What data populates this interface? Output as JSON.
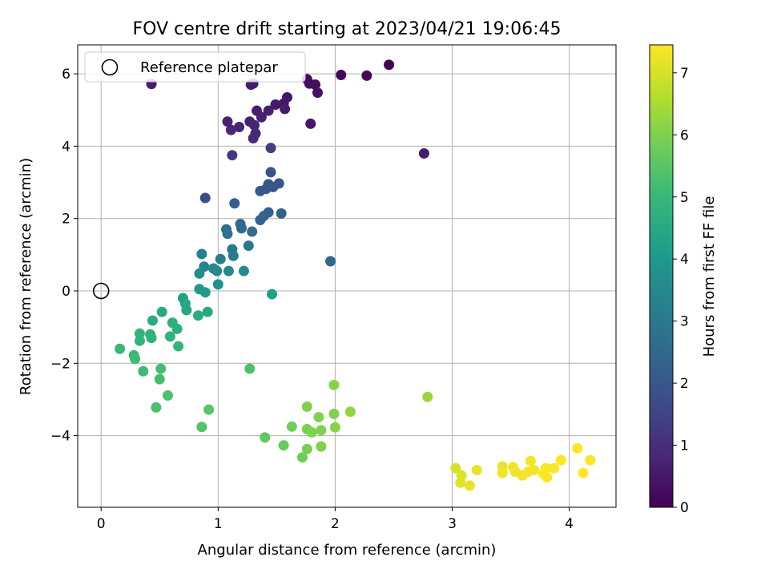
{
  "chart_data": {
    "type": "scatter",
    "title": "FOV centre drift starting at 2023/04/21 19:06:45",
    "xlabel": "Angular distance from reference (arcmin)",
    "ylabel": "Rotation from reference (arcmin)",
    "xlim": [
      -0.2,
      4.4
    ],
    "ylim": [
      -5.98,
      6.8
    ],
    "xticks": [
      0,
      1,
      2,
      3,
      4
    ],
    "yticks": [
      -4,
      -2,
      0,
      2,
      4,
      6
    ],
    "ytick_labels": [
      "−4",
      "−2",
      "0",
      "2",
      "4",
      "6"
    ],
    "grid": true,
    "legend": {
      "placement": "top-left",
      "entries": [
        "Reference platepar"
      ]
    },
    "reference_point": {
      "x": 0,
      "y": 0
    },
    "colorbar": {
      "label": "Hours from first FF file",
      "min": 0,
      "max": 7.45,
      "ticks": [
        0,
        1,
        2,
        3,
        4,
        5,
        6,
        7
      ],
      "colormap": "viridis"
    },
    "colormap_stops": [
      "#440154",
      "#482878",
      "#3e4a89",
      "#31688e",
      "#26828e",
      "#1f9e89",
      "#35b779",
      "#6dcd59",
      "#b4de2c",
      "#fde725"
    ],
    "reference_marker_color": "#000000",
    "grid_color": "#b0b0b0",
    "points": [
      {
        "x": 2.46,
        "y": 6.25,
        "c": 0.05
      },
      {
        "x": 2.05,
        "y": 5.97,
        "c": 0.1
      },
      {
        "x": 2.27,
        "y": 5.95,
        "c": 0.12
      },
      {
        "x": 1.76,
        "y": 5.85,
        "c": 0.2
      },
      {
        "x": 1.78,
        "y": 5.73,
        "c": 0.25
      },
      {
        "x": 1.83,
        "y": 5.7,
        "c": 0.3
      },
      {
        "x": 1.85,
        "y": 5.48,
        "c": 0.35
      },
      {
        "x": 1.59,
        "y": 5.35,
        "c": 0.45
      },
      {
        "x": 1.56,
        "y": 5.18,
        "c": 0.5
      },
      {
        "x": 1.49,
        "y": 5.15,
        "c": 0.5
      },
      {
        "x": 1.57,
        "y": 5.03,
        "c": 0.55
      },
      {
        "x": 1.43,
        "y": 4.98,
        "c": 0.6
      },
      {
        "x": 1.33,
        "y": 4.98,
        "c": 0.6
      },
      {
        "x": 1.37,
        "y": 4.8,
        "c": 0.65
      },
      {
        "x": 1.27,
        "y": 4.68,
        "c": 0.7
      },
      {
        "x": 1.08,
        "y": 4.68,
        "c": 0.7
      },
      {
        "x": 1.31,
        "y": 4.58,
        "c": 0.75
      },
      {
        "x": 1.18,
        "y": 4.53,
        "c": 0.75
      },
      {
        "x": 1.11,
        "y": 4.45,
        "c": 0.8
      },
      {
        "x": 1.32,
        "y": 4.35,
        "c": 0.85
      },
      {
        "x": 1.3,
        "y": 4.22,
        "c": 0.9
      },
      {
        "x": 1.79,
        "y": 4.62,
        "c": 0.45
      },
      {
        "x": 2.76,
        "y": 3.8,
        "c": 0.6
      },
      {
        "x": 0.43,
        "y": 5.72,
        "c": 0.6
      },
      {
        "x": 1.28,
        "y": 5.7,
        "c": 0.6
      },
      {
        "x": 1.3,
        "y": 5.73,
        "c": 0.55
      },
      {
        "x": 1.12,
        "y": 3.75,
        "c": 1.3
      },
      {
        "x": 1.45,
        "y": 3.95,
        "c": 1.4
      },
      {
        "x": 0.89,
        "y": 2.57,
        "c": 1.75
      },
      {
        "x": 1.45,
        "y": 3.28,
        "c": 1.85
      },
      {
        "x": 1.43,
        "y": 2.95,
        "c": 1.95
      },
      {
        "x": 1.52,
        "y": 2.97,
        "c": 2.0
      },
      {
        "x": 1.47,
        "y": 2.87,
        "c": 2.0
      },
      {
        "x": 1.36,
        "y": 2.76,
        "c": 2.1
      },
      {
        "x": 1.41,
        "y": 2.82,
        "c": 2.05
      },
      {
        "x": 1.14,
        "y": 2.42,
        "c": 2.2
      },
      {
        "x": 1.43,
        "y": 2.17,
        "c": 2.3
      },
      {
        "x": 1.54,
        "y": 2.14,
        "c": 2.3
      },
      {
        "x": 1.39,
        "y": 2.07,
        "c": 2.35
      },
      {
        "x": 1.36,
        "y": 1.96,
        "c": 2.4
      },
      {
        "x": 1.19,
        "y": 1.85,
        "c": 2.5
      },
      {
        "x": 1.2,
        "y": 1.73,
        "c": 2.5
      },
      {
        "x": 1.29,
        "y": 1.64,
        "c": 2.6
      },
      {
        "x": 1.07,
        "y": 1.7,
        "c": 2.7
      },
      {
        "x": 1.08,
        "y": 1.58,
        "c": 2.8
      },
      {
        "x": 1.26,
        "y": 1.25,
        "c": 2.9
      },
      {
        "x": 1.96,
        "y": 0.82,
        "c": 2.5
      },
      {
        "x": 1.12,
        "y": 1.15,
        "c": 3.0
      },
      {
        "x": 1.13,
        "y": 0.97,
        "c": 3.1
      },
      {
        "x": 1.02,
        "y": 0.88,
        "c": 3.2
      },
      {
        "x": 0.86,
        "y": 1.02,
        "c": 3.3
      },
      {
        "x": 0.88,
        "y": 0.67,
        "c": 3.4
      },
      {
        "x": 0.96,
        "y": 0.62,
        "c": 3.5
      },
      {
        "x": 0.99,
        "y": 0.55,
        "c": 3.5
      },
      {
        "x": 1.09,
        "y": 0.55,
        "c": 3.5
      },
      {
        "x": 1.22,
        "y": 0.55,
        "c": 3.6
      },
      {
        "x": 0.84,
        "y": 0.48,
        "c": 3.7
      },
      {
        "x": 1.0,
        "y": 0.18,
        "c": 3.8
      },
      {
        "x": 0.84,
        "y": 0.05,
        "c": 3.9
      },
      {
        "x": 1.46,
        "y": -0.09,
        "c": 4.2
      },
      {
        "x": 0.89,
        "y": -0.04,
        "c": 4.0
      },
      {
        "x": 0.7,
        "y": -0.2,
        "c": 4.3
      },
      {
        "x": 0.72,
        "y": -0.35,
        "c": 4.4
      },
      {
        "x": 0.73,
        "y": -0.53,
        "c": 4.4
      },
      {
        "x": 0.52,
        "y": -0.58,
        "c": 4.5
      },
      {
        "x": 0.91,
        "y": -0.58,
        "c": 4.5
      },
      {
        "x": 0.83,
        "y": -0.68,
        "c": 4.6
      },
      {
        "x": 0.44,
        "y": -0.82,
        "c": 4.6
      },
      {
        "x": 0.61,
        "y": -0.88,
        "c": 4.7
      },
      {
        "x": 0.65,
        "y": -1.05,
        "c": 4.7
      },
      {
        "x": 0.33,
        "y": -1.18,
        "c": 4.8
      },
      {
        "x": 0.42,
        "y": -1.2,
        "c": 4.8
      },
      {
        "x": 0.59,
        "y": -1.26,
        "c": 4.8
      },
      {
        "x": 0.43,
        "y": -1.3,
        "c": 4.8
      },
      {
        "x": 0.33,
        "y": -1.38,
        "c": 4.9
      },
      {
        "x": 0.66,
        "y": -1.53,
        "c": 4.9
      },
      {
        "x": 0.16,
        "y": -1.6,
        "c": 5.0
      },
      {
        "x": 0.28,
        "y": -1.78,
        "c": 5.0
      },
      {
        "x": 0.29,
        "y": -1.88,
        "c": 5.1
      },
      {
        "x": 0.36,
        "y": -2.22,
        "c": 5.1
      },
      {
        "x": 0.51,
        "y": -2.15,
        "c": 5.2
      },
      {
        "x": 1.27,
        "y": -2.15,
        "c": 5.3
      },
      {
        "x": 0.5,
        "y": -2.44,
        "c": 5.2
      },
      {
        "x": 0.57,
        "y": -2.89,
        "c": 5.3
      },
      {
        "x": 0.47,
        "y": -3.22,
        "c": 5.3
      },
      {
        "x": 0.86,
        "y": -3.76,
        "c": 5.4
      },
      {
        "x": 0.92,
        "y": -3.28,
        "c": 5.5
      },
      {
        "x": 1.4,
        "y": -4.05,
        "c": 5.6
      },
      {
        "x": 1.56,
        "y": -4.27,
        "c": 5.7
      },
      {
        "x": 1.63,
        "y": -3.75,
        "c": 5.8
      },
      {
        "x": 1.72,
        "y": -4.6,
        "c": 5.8
      },
      {
        "x": 1.76,
        "y": -3.82,
        "c": 5.9
      },
      {
        "x": 1.76,
        "y": -4.37,
        "c": 5.9
      },
      {
        "x": 1.76,
        "y": -3.2,
        "c": 6.0
      },
      {
        "x": 1.8,
        "y": -3.91,
        "c": 6.0
      },
      {
        "x": 1.86,
        "y": -3.49,
        "c": 6.0
      },
      {
        "x": 1.88,
        "y": -3.85,
        "c": 6.0
      },
      {
        "x": 1.88,
        "y": -4.3,
        "c": 6.0
      },
      {
        "x": 1.99,
        "y": -3.4,
        "c": 6.0
      },
      {
        "x": 2.0,
        "y": -3.77,
        "c": 6.1
      },
      {
        "x": 1.99,
        "y": -2.6,
        "c": 6.1
      },
      {
        "x": 2.13,
        "y": -3.34,
        "c": 6.2
      },
      {
        "x": 2.79,
        "y": -2.93,
        "c": 6.3
      },
      {
        "x": 3.03,
        "y": -4.9,
        "c": 7.0
      },
      {
        "x": 3.08,
        "y": -5.1,
        "c": 7.1
      },
      {
        "x": 3.07,
        "y": -5.3,
        "c": 7.1
      },
      {
        "x": 3.15,
        "y": -5.38,
        "c": 7.2
      },
      {
        "x": 3.21,
        "y": -4.95,
        "c": 7.2
      },
      {
        "x": 3.43,
        "y": -4.85,
        "c": 7.2
      },
      {
        "x": 3.43,
        "y": -5.03,
        "c": 7.3
      },
      {
        "x": 3.52,
        "y": -4.87,
        "c": 7.3
      },
      {
        "x": 3.54,
        "y": -5.0,
        "c": 7.3
      },
      {
        "x": 3.6,
        "y": -5.1,
        "c": 7.3
      },
      {
        "x": 3.65,
        "y": -5.0,
        "c": 7.35
      },
      {
        "x": 3.67,
        "y": -4.7,
        "c": 7.35
      },
      {
        "x": 3.7,
        "y": -4.95,
        "c": 7.35
      },
      {
        "x": 3.78,
        "y": -5.05,
        "c": 7.4
      },
      {
        "x": 3.8,
        "y": -4.9,
        "c": 7.4
      },
      {
        "x": 3.81,
        "y": -5.15,
        "c": 7.4
      },
      {
        "x": 3.87,
        "y": -4.9,
        "c": 7.4
      },
      {
        "x": 3.93,
        "y": -4.68,
        "c": 7.4
      },
      {
        "x": 4.07,
        "y": -4.35,
        "c": 7.45
      },
      {
        "x": 4.12,
        "y": -5.03,
        "c": 7.45
      },
      {
        "x": 4.18,
        "y": -4.68,
        "c": 7.45
      }
    ]
  }
}
